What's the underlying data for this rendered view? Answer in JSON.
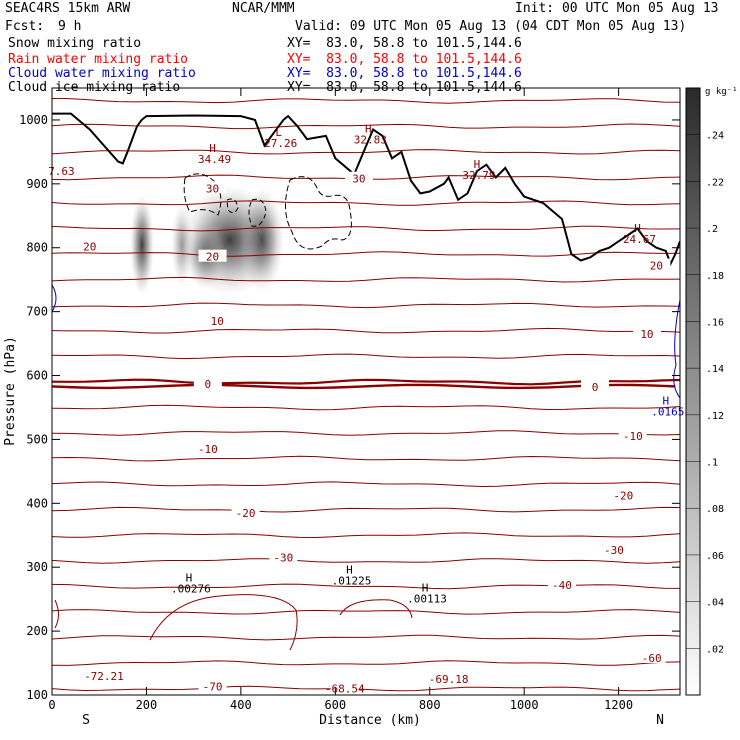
{
  "header": {
    "model": "SEAC4RS 15km ARW",
    "institution": "NCAR/MMM",
    "init": "Init: 00 UTC Mon 05 Aug 13",
    "fcst_label": "Fcst:",
    "fcst_value": "9 h",
    "valid": "Valid: 09 UTC Mon 05 Aug 13 (04 CDT Mon 05 Aug 13)"
  },
  "fields": [
    {
      "name": "Snow mixing ratio",
      "xy": "XY=  83.0, 58.8 to 101.5,144.6",
      "color": "#000000"
    },
    {
      "name": "Rain water mixing ratio",
      "xy": "XY=  83.0, 58.8 to 101.5,144.6",
      "color": "#ff0000"
    },
    {
      "name": "Cloud water mixing ratio",
      "xy": "XY=  83.0, 58.8 to 101.5,144.6",
      "color": "#0000cc"
    },
    {
      "name": "Cloud ice mixing ratio",
      "xy": "XY=  83.0, 58.8 to 101.5,144.6",
      "color": "#000000"
    }
  ],
  "chart_data": {
    "type": "heatmap",
    "xlabel": "Distance (km)",
    "ylabel": "Pressure (hPa)",
    "xlim": [
      0,
      1330
    ],
    "ylim": [
      1050,
      100
    ],
    "x_ticks": [
      "0",
      "200",
      "400",
      "600",
      "800",
      "1000",
      "1200"
    ],
    "y_ticks": [
      "100",
      "200",
      "300",
      "400",
      "500",
      "600",
      "700",
      "800",
      "900",
      "1000"
    ],
    "endpoints": {
      "left": "S",
      "right": "N"
    },
    "colorbar": {
      "unit": "g kg⁻¹",
      "labels": [
        ".02",
        ".04",
        ".06",
        ".08",
        ".1",
        ".12",
        ".14",
        ".16",
        ".18",
        ".2",
        ".22",
        ".24"
      ]
    },
    "temperature_contour_labels": [
      {
        "text": "-72.21",
        "x": 110,
        "p": 130
      },
      {
        "text": "-70",
        "x": 340,
        "p": 113
      },
      {
        "text": "-68.54",
        "x": 620,
        "p": 110
      },
      {
        "text": "-69.18",
        "x": 840,
        "p": 125
      },
      {
        "text": "-60",
        "x": 1270,
        "p": 158
      },
      {
        "text": "-40",
        "x": 1080,
        "p": 272
      },
      {
        "text": "-30",
        "x": 1190,
        "p": 327
      },
      {
        "text": "-30",
        "x": 490,
        "p": 315
      },
      {
        "text": "-20",
        "x": 410,
        "p": 385
      },
      {
        "text": "-20",
        "x": 1210,
        "p": 412
      },
      {
        "text": "-10",
        "x": 330,
        "p": 485
      },
      {
        "text": "-10",
        "x": 1230,
        "p": 505
      },
      {
        "text": "0",
        "x": 330,
        "p": 587
      },
      {
        "text": "0",
        "x": 1150,
        "p": 582
      },
      {
        "text": "10",
        "x": 350,
        "p": 685
      },
      {
        "text": "10",
        "x": 1260,
        "p": 665
      },
      {
        "text": "20",
        "x": 340,
        "p": 786
      },
      {
        "text": "20",
        "x": 80,
        "p": 802
      },
      {
        "text": "20",
        "x": 1280,
        "p": 772
      },
      {
        "text": "30",
        "x": 340,
        "p": 893
      },
      {
        "text": "30",
        "x": 650,
        "p": 908
      },
      {
        "text": "7.63",
        "x": 20,
        "p": 920
      }
    ],
    "extrema_labels": [
      {
        "mark": "H",
        "value": ".00276",
        "x": 290,
        "p": 278,
        "color": "#000000"
      },
      {
        "mark": "H",
        "value": ".01225",
        "x": 630,
        "p": 290,
        "color": "#000000"
      },
      {
        "mark": "H",
        "value": ".00113",
        "x": 790,
        "p": 262,
        "color": "#000000"
      },
      {
        "mark": "H",
        "value": ".0165",
        "x": 1300,
        "p": 555,
        "color": "#0000cc"
      },
      {
        "mark": "H",
        "value": "34.49",
        "x": 340,
        "p": 950,
        "color": "#8b0000"
      },
      {
        "mark": "L",
        "value": "27.26",
        "x": 480,
        "p": 975,
        "color": "#8b0000"
      },
      {
        "mark": "H",
        "value": "32.83",
        "x": 670,
        "p": 980,
        "color": "#8b0000"
      },
      {
        "mark": "H",
        "value": "32.79",
        "x": 900,
        "p": 925,
        "color": "#8b0000"
      },
      {
        "mark": "H",
        "value": "24.67",
        "x": 1240,
        "p": 825,
        "color": "#8b0000"
      }
    ],
    "terrain_profile": {
      "x": [
        0,
        40,
        80,
        110,
        140,
        150,
        160,
        180,
        190,
        200,
        300,
        400,
        430,
        450,
        470,
        490,
        500,
        520,
        540,
        580,
        600,
        640,
        660,
        680,
        700,
        720,
        740,
        760,
        780,
        800,
        830,
        840,
        860,
        880,
        900,
        920,
        940,
        960,
        980,
        1000,
        1040,
        1080,
        1100,
        1120,
        1140,
        1160,
        1180,
        1200,
        1220,
        1240,
        1260,
        1280,
        1300,
        1310,
        1320,
        1330
      ],
      "p": [
        1010,
        1010,
        985,
        960,
        935,
        932,
        950,
        990,
        1000,
        1006,
        1007,
        1006,
        1000,
        960,
        980,
        1000,
        1006,
        990,
        970,
        975,
        940,
        915,
        950,
        985,
        975,
        940,
        950,
        905,
        885,
        888,
        900,
        910,
        875,
        885,
        920,
        930,
        910,
        925,
        900,
        880,
        870,
        845,
        790,
        780,
        785,
        795,
        800,
        810,
        820,
        830,
        810,
        800,
        795,
        775,
        790,
        810
      ]
    },
    "temperature_contours_C": [
      -70,
      -60,
      -50,
      -40,
      -30,
      -20,
      -10,
      0,
      10,
      20,
      30
    ]
  }
}
